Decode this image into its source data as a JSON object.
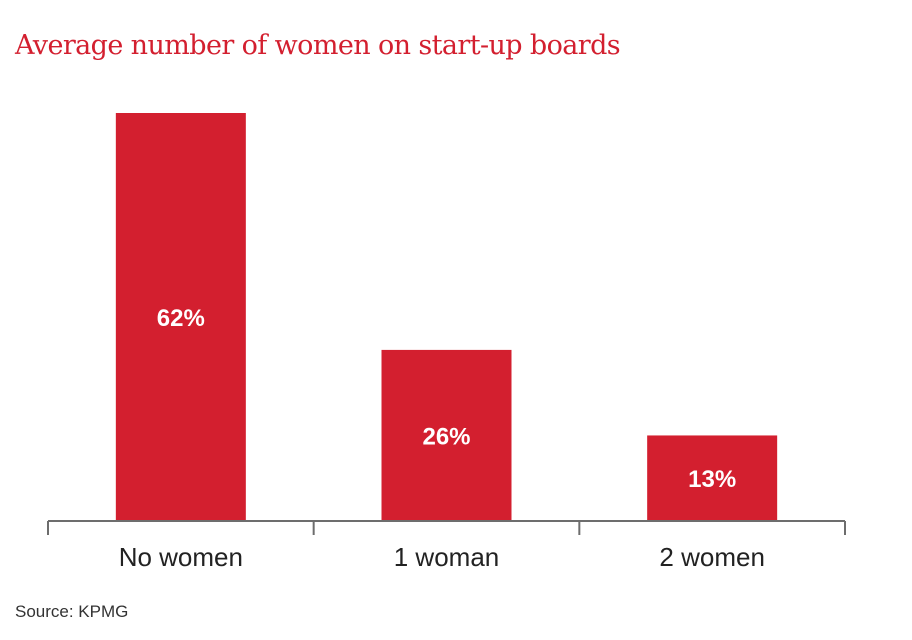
{
  "chart_data": {
    "type": "bar",
    "title": "Average number of women on start-up boards",
    "categories": [
      "No women",
      "1 woman",
      "2 women"
    ],
    "values": [
      62,
      26,
      13
    ],
    "value_labels": [
      "62%",
      "26%",
      "13%"
    ],
    "unit": "%",
    "xlabel": "",
    "ylabel": "",
    "ylim": [
      0,
      62
    ],
    "grid": false,
    "legend": "none",
    "bar_color": "#d31f2f",
    "label_color": "#ffffff",
    "axis_color": "#6d6d6d"
  },
  "source": "Source: KPMG"
}
